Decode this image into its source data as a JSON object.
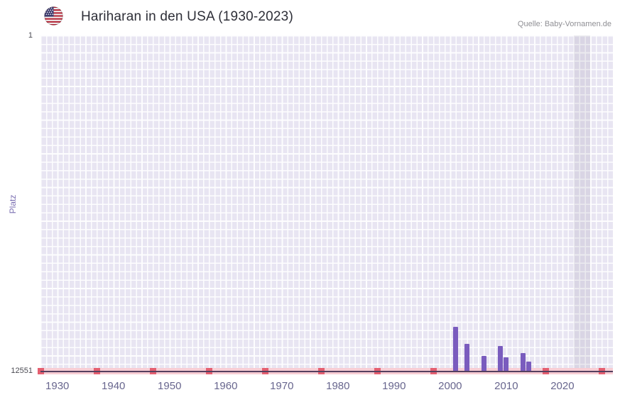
{
  "header": {
    "title": "Hariharan in den USA (1930-2023)",
    "source": "Quelle: Baby-Vornamen.de"
  },
  "chart_data": {
    "type": "bar",
    "title": "Hariharan in den USA (1930-2023)",
    "xlabel": "",
    "ylabel": "Platz",
    "y_axis": {
      "min": 1,
      "max": 12551,
      "inverted": true,
      "top_tick_label": "1",
      "bottom_tick_label": "12551"
    },
    "x_axis": {
      "min": 1927,
      "max": 2029,
      "ticks": [
        1930,
        1940,
        1950,
        1960,
        1970,
        1980,
        1990,
        2000,
        2010,
        2020
      ]
    },
    "bars": [
      {
        "year": 2001,
        "rank": 10890
      },
      {
        "year": 2003,
        "rank": 11520
      },
      {
        "year": 2006,
        "rank": 11970
      },
      {
        "year": 2009,
        "rank": 11600
      },
      {
        "year": 2010,
        "rank": 12020
      },
      {
        "year": 2013,
        "rank": 11860
      },
      {
        "year": 2014,
        "rank": 12180
      }
    ],
    "decade_markers": [
      1927,
      1937,
      1947,
      1957,
      1967,
      1977,
      1987,
      1997,
      2017,
      2027
    ],
    "highlight_band": {
      "from_year": 2022,
      "to_year": 2025
    },
    "legend_position": "none",
    "grid": true,
    "colors": {
      "bar": "#7a5cbe",
      "plot_background": "#e8e5f2",
      "grid_line": "#fdfdfe",
      "strip": "#f7cdd4",
      "strip_marker": "#e45f70",
      "axis_line": "#55405f",
      "tick_label": "#68668e",
      "highlight_band": "rgba(125,118,150,0.14)"
    }
  }
}
